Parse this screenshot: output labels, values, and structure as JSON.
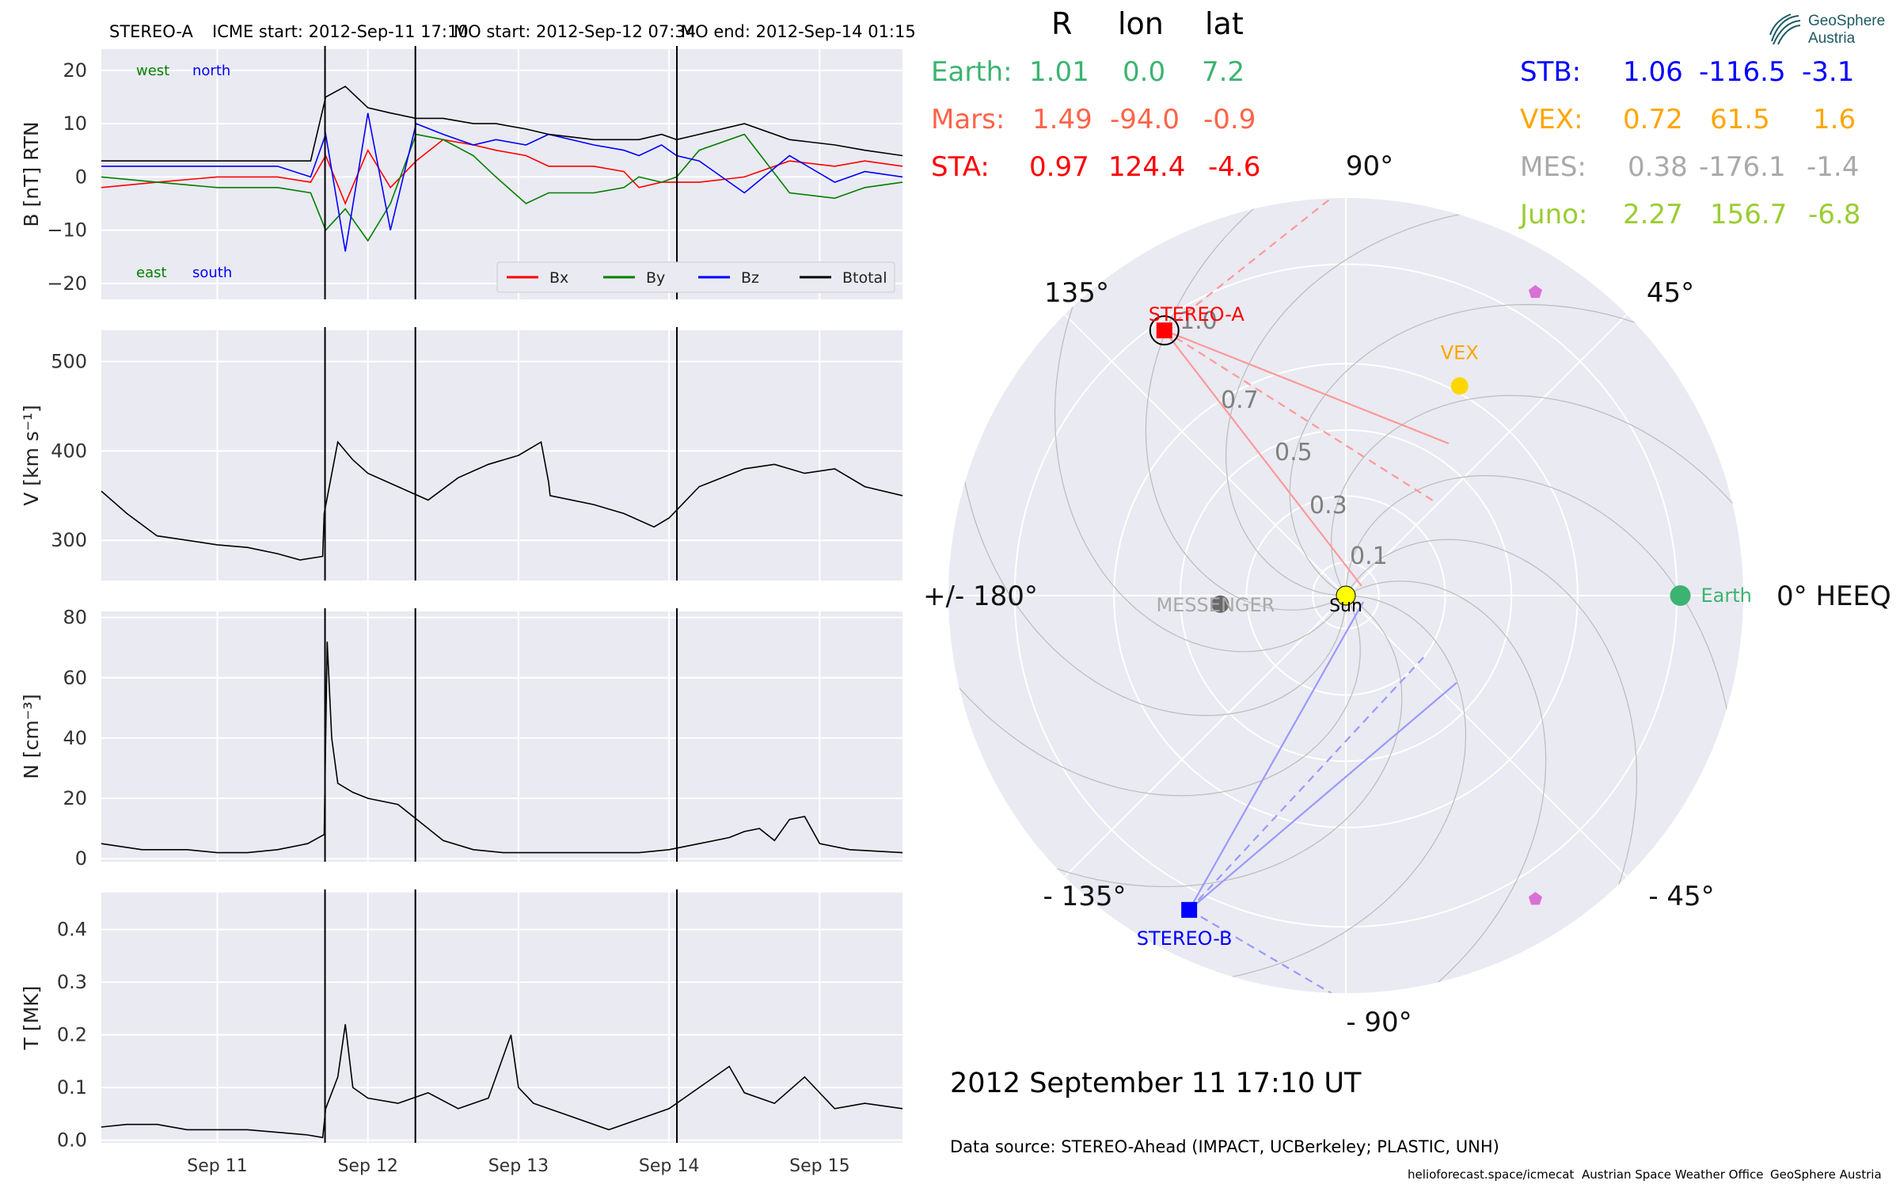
{
  "header": {
    "spacecraft": "STEREO-A",
    "icme_start": "ICME start: 2012-Sep-11 17:10",
    "mo_start": "MO start: 2012-Sep-12 07:34",
    "mo_end": "MO end: 2012-Sep-14 01:15"
  },
  "colors": {
    "panel_bg": "#eaeaf2",
    "bx": "#ff0000",
    "by": "#008000",
    "bz": "#0000ff",
    "btotal": "#000000",
    "earth": "#3cb371",
    "mars": "#ff6347",
    "sta": "#ff0000",
    "stb": "#0000ff",
    "vex": "#ffa500",
    "mes": "#a9a9a9",
    "juno": "#9acd32"
  },
  "positions_table": {
    "col_headers": [
      "R",
      "lon",
      "lat"
    ],
    "rows": [
      {
        "label": "Earth:",
        "r": "1.01",
        "lon": "0.0",
        "lat": "7.2",
        "color": "#3cb371"
      },
      {
        "label": "Mars:",
        "r": "1.49",
        "lon": "-94.0",
        "lat": "-0.9",
        "color": "#ff6347"
      },
      {
        "label": "STA:",
        "r": "0.97",
        "lon": "124.4",
        "lat": "-4.6",
        "color": "#ff0000"
      },
      {
        "label": "STB:",
        "r": "1.06",
        "lon": "-116.5",
        "lat": "-3.1",
        "color": "#0000ff"
      },
      {
        "label": "VEX:",
        "r": "0.72",
        "lon": "61.5",
        "lat": "1.6",
        "color": "#ffa500"
      },
      {
        "label": "MES:",
        "r": "0.38",
        "lon": "-176.1",
        "lat": "-1.4",
        "color": "#a9a9a9"
      },
      {
        "label": "Juno:",
        "r": "2.27",
        "lon": "156.7",
        "lat": "-6.8",
        "color": "#9acd32"
      }
    ]
  },
  "logo": {
    "line1": "GeoSphere",
    "line2": "Austria"
  },
  "chart_data": [
    {
      "type": "line",
      "ylabel": "B [nT] RTN",
      "ylim": [
        -23,
        24
      ],
      "yticks": [
        -20,
        -10,
        0,
        10,
        20
      ],
      "ytick_labels": [
        "−20",
        "−10",
        "0",
        "10",
        "20"
      ],
      "xlim_days": [
        10.23,
        15.55
      ],
      "x_ticks": [
        "Sep 11",
        "Sep 12",
        "Sep 13",
        "Sep 14",
        "Sep 15"
      ],
      "event_lines": [
        "2012-09-11 17:10",
        "2012-09-12 07:34",
        "2012-09-14 01:15"
      ],
      "annotations": {
        "west": "west",
        "north": "north",
        "east": "east",
        "south": "south"
      },
      "legend_position": "lower right",
      "series": [
        {
          "name": "Bx",
          "x": [
            10.23,
            10.6,
            11.0,
            11.4,
            11.62,
            11.72,
            11.85,
            12.0,
            12.15,
            12.32,
            12.5,
            12.7,
            12.85,
            13.05,
            13.2,
            13.5,
            13.7,
            13.8,
            13.95,
            14.05,
            14.2,
            14.5,
            14.8,
            15.1,
            15.3,
            15.55
          ],
          "y": [
            -2,
            -1,
            0,
            0,
            -1,
            4,
            -5,
            5,
            -2,
            3,
            7,
            6,
            5,
            4,
            2,
            2,
            1,
            -2,
            -1,
            -1,
            -1,
            0,
            3,
            2,
            3,
            2
          ]
        },
        {
          "name": "By",
          "x": [
            10.23,
            10.6,
            11.0,
            11.4,
            11.62,
            11.72,
            11.85,
            12.0,
            12.15,
            12.32,
            12.5,
            12.7,
            12.85,
            13.05,
            13.2,
            13.5,
            13.7,
            13.8,
            13.95,
            14.05,
            14.2,
            14.5,
            14.8,
            15.1,
            15.3,
            15.55
          ],
          "y": [
            0,
            -1,
            -2,
            -2,
            -3,
            -10,
            -6,
            -12,
            -5,
            8,
            7,
            4,
            0,
            -5,
            -3,
            -3,
            -2,
            0,
            -1,
            0,
            5,
            8,
            -3,
            -4,
            -2,
            -1
          ]
        },
        {
          "name": "Bz",
          "x": [
            10.23,
            10.6,
            11.0,
            11.4,
            11.62,
            11.72,
            11.85,
            12.0,
            12.15,
            12.32,
            12.5,
            12.7,
            12.85,
            13.05,
            13.2,
            13.5,
            13.7,
            13.8,
            13.95,
            14.05,
            14.2,
            14.5,
            14.8,
            15.1,
            15.3,
            15.55
          ],
          "y": [
            2,
            2,
            2,
            2,
            0,
            8,
            -14,
            12,
            -10,
            10,
            8,
            6,
            7,
            6,
            8,
            6,
            5,
            4,
            6,
            4,
            3,
            -3,
            4,
            -1,
            1,
            0
          ]
        },
        {
          "name": "Btotal",
          "x": [
            10.23,
            10.6,
            11.0,
            11.4,
            11.62,
            11.72,
            11.85,
            12.0,
            12.15,
            12.32,
            12.5,
            12.7,
            12.85,
            13.05,
            13.2,
            13.5,
            13.7,
            13.8,
            13.95,
            14.05,
            14.2,
            14.5,
            14.8,
            15.1,
            15.3,
            15.55
          ],
          "y": [
            3,
            3,
            3,
            3,
            3,
            15,
            17,
            13,
            12,
            11,
            11,
            10,
            10,
            9,
            8,
            7,
            7,
            7,
            8,
            7,
            8,
            10,
            7,
            6,
            5,
            4
          ]
        }
      ]
    },
    {
      "type": "line",
      "ylabel": "V [km s⁻¹]",
      "ylim": [
        255,
        535
      ],
      "yticks": [
        300,
        400,
        500
      ],
      "xlim_days": [
        10.23,
        15.55
      ],
      "x_ticks": [
        "Sep 11",
        "Sep 12",
        "Sep 13",
        "Sep 14",
        "Sep 15"
      ],
      "series": [
        {
          "name": "V",
          "x": [
            10.23,
            10.4,
            10.6,
            10.8,
            11.0,
            11.2,
            11.4,
            11.55,
            11.7,
            11.71,
            11.8,
            11.9,
            12.0,
            12.2,
            12.4,
            12.6,
            12.8,
            13.0,
            13.15,
            13.2,
            13.21,
            13.5,
            13.7,
            13.9,
            14.0,
            14.2,
            14.5,
            14.7,
            14.9,
            15.1,
            15.3,
            15.55
          ],
          "y": [
            355,
            330,
            305,
            300,
            295,
            292,
            285,
            278,
            282,
            330,
            410,
            390,
            375,
            360,
            345,
            370,
            385,
            395,
            410,
            365,
            350,
            340,
            330,
            315,
            325,
            360,
            380,
            385,
            375,
            380,
            360,
            350
          ]
        }
      ]
    },
    {
      "type": "line",
      "ylabel": "N [cm⁻³]",
      "ylim": [
        -1,
        82
      ],
      "yticks": [
        0,
        20,
        40,
        60,
        80
      ],
      "xlim_days": [
        10.23,
        15.55
      ],
      "x_ticks": [
        "Sep 11",
        "Sep 12",
        "Sep 13",
        "Sep 14",
        "Sep 15"
      ],
      "series": [
        {
          "name": "N",
          "x": [
            10.23,
            10.5,
            10.8,
            11.0,
            11.2,
            11.4,
            11.6,
            11.71,
            11.73,
            11.76,
            11.8,
            11.9,
            12.0,
            12.2,
            12.35,
            12.5,
            12.7,
            12.9,
            13.2,
            13.5,
            13.8,
            14.0,
            14.2,
            14.4,
            14.5,
            14.6,
            14.7,
            14.8,
            14.9,
            15.0,
            15.2,
            15.55
          ],
          "y": [
            5,
            3,
            3,
            2,
            2,
            3,
            5,
            8,
            72,
            40,
            25,
            22,
            20,
            18,
            12,
            6,
            3,
            2,
            2,
            2,
            2,
            3,
            5,
            7,
            9,
            10,
            6,
            13,
            14,
            5,
            3,
            2
          ]
        }
      ]
    },
    {
      "type": "line",
      "ylabel": "T [MK]",
      "ylim": [
        -0.005,
        0.47
      ],
      "yticks": [
        0.0,
        0.1,
        0.2,
        0.3,
        0.4
      ],
      "xlim_days": [
        10.23,
        15.55
      ],
      "x_ticks": [
        "Sep 11",
        "Sep 12",
        "Sep 13",
        "Sep 14",
        "Sep 15"
      ],
      "series": [
        {
          "name": "T",
          "x": [
            10.23,
            10.4,
            10.6,
            10.8,
            11.0,
            11.2,
            11.4,
            11.6,
            11.7,
            11.72,
            11.8,
            11.85,
            11.9,
            12.0,
            12.2,
            12.4,
            12.6,
            12.8,
            12.95,
            13.0,
            13.1,
            13.3,
            13.6,
            13.8,
            14.0,
            14.2,
            14.4,
            14.5,
            14.7,
            14.9,
            15.1,
            15.3,
            15.55
          ],
          "y": [
            0.025,
            0.03,
            0.03,
            0.02,
            0.02,
            0.02,
            0.015,
            0.01,
            0.005,
            0.06,
            0.12,
            0.22,
            0.1,
            0.08,
            0.07,
            0.09,
            0.06,
            0.08,
            0.2,
            0.1,
            0.07,
            0.05,
            0.02,
            0.04,
            0.06,
            0.1,
            0.14,
            0.09,
            0.07,
            0.12,
            0.06,
            0.07,
            0.06
          ]
        }
      ]
    },
    {
      "type": "scatter",
      "subtype": "polar",
      "reference": "0° HEEQ",
      "angle_labels": [
        "90°",
        "45°",
        "0° HEEQ",
        "- 45°",
        "- 90°",
        "- 135°",
        "+/- 180°",
        "135°"
      ],
      "radius_labels": [
        "0.1",
        "0.3",
        "0.5",
        "0.7",
        "1.0"
      ],
      "rlim": [
        0,
        1.2
      ],
      "objects": [
        {
          "name": "Sun",
          "r": 0.0,
          "lon": 0.0,
          "color": "#ffff00"
        },
        {
          "name": "Earth",
          "r": 1.01,
          "lon": 0.0,
          "color": "#3cb371"
        },
        {
          "name": "STEREO-A",
          "r": 0.97,
          "lon": 124.4,
          "color": "#ff0000"
        },
        {
          "name": "STEREO-B",
          "r": 1.06,
          "lon": -116.5,
          "color": "#0000ff"
        },
        {
          "name": "VEX",
          "r": 0.72,
          "lon": 61.5,
          "color": "#ffd700"
        },
        {
          "name": "MESSENGER",
          "r": 0.38,
          "lon": -176.1,
          "color": "#696969"
        }
      ],
      "extra_markers": [
        {
          "r": 1.08,
          "lon": 58,
          "color": "#da70d6"
        },
        {
          "r": 1.08,
          "lon": -58,
          "color": "#da70d6"
        }
      ]
    }
  ],
  "timestamp": "2012 September 11  17:10 UT",
  "data_source": "Data source: STEREO-Ahead (IMPACT, UCBerkeley; PLASTIC, UNH)",
  "footer": {
    "site": "helioforecast.space/icmecat",
    "office": "Austrian Space Weather Office",
    "org": "GeoSphere Austria"
  }
}
